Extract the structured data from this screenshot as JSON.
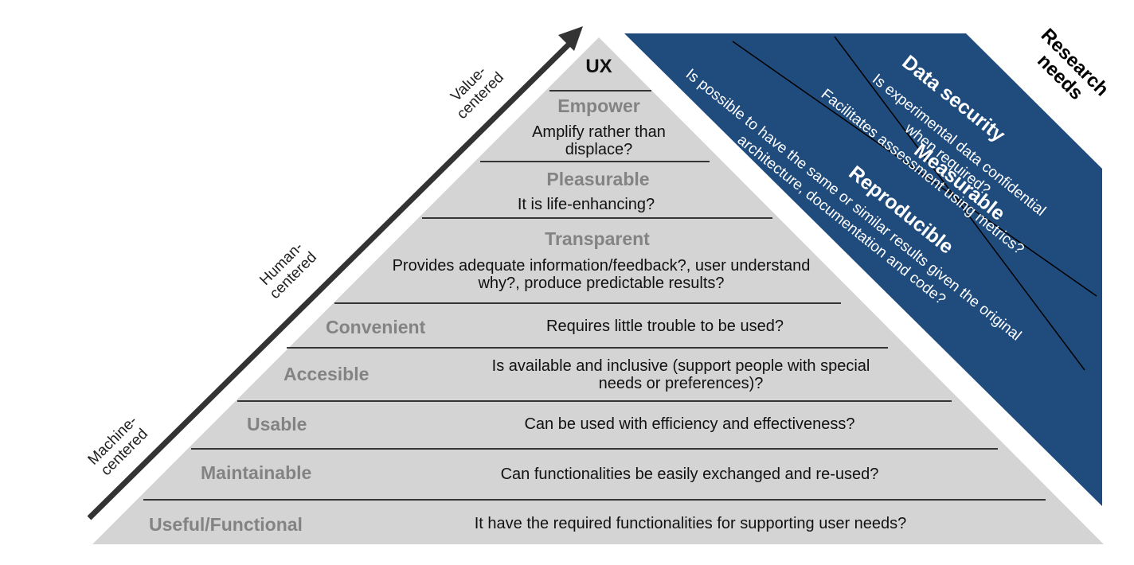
{
  "pyramid": {
    "top": "UX",
    "levels": [
      {
        "title": "Empower",
        "desc": "Amplify rather than displace?"
      },
      {
        "title": "Pleasurable",
        "desc": "It is life-enhancing?"
      },
      {
        "title": "Transparent",
        "desc": "Provides adequate information/feedback?, user understand why?, produce predictable results?"
      },
      {
        "title": "Convenient",
        "desc": "Requires little trouble to be used?"
      },
      {
        "title": "Accesible",
        "desc": "Is available and inclusive (support people with special needs or preferences)?"
      },
      {
        "title": "Usable",
        "desc": "Can be used with efficiency and effectiveness?"
      },
      {
        "title": "Maintainable",
        "desc": "Can functionalities be easily exchanged and re-used?"
      },
      {
        "title": "Useful/Functional",
        "desc": "It have the required functionalities for supporting user needs?"
      }
    ]
  },
  "axis": {
    "machine": "Machine-\ncentered",
    "human": "Human-\ncentered",
    "value": "Value-\ncentered"
  },
  "research": {
    "header": "Research\nneeds",
    "items": [
      {
        "title": "Data security",
        "desc": "Is experimental data confidential\nwhen required?"
      },
      {
        "title": "Measurable",
        "desc": "Facilitates assessment using metrics?"
      },
      {
        "title": "Reproducible",
        "desc": "Is possible to have the  same or similar results given the original\narchitecture, documentation and code?"
      }
    ]
  },
  "colors": {
    "pyramid_fill": "#d4d4d4",
    "band_fill": "#1f4b7d",
    "level_title": "#838383",
    "arrow": "#333333"
  }
}
